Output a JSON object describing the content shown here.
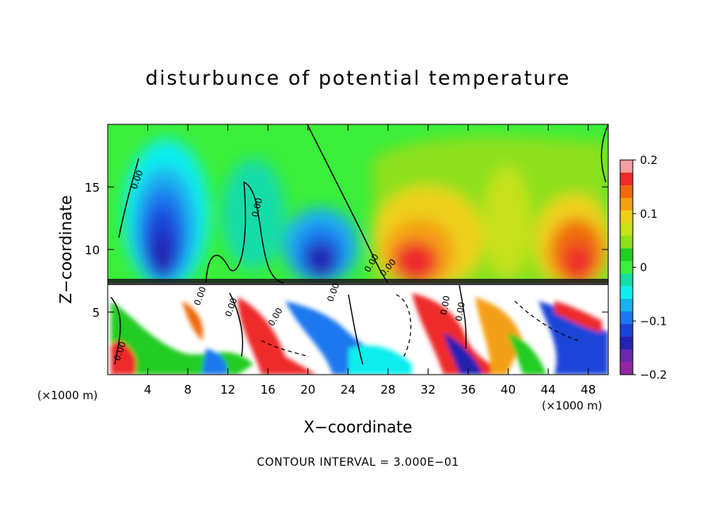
{
  "chart_data": {
    "type": "heatmap",
    "title": "disturbunce of potential temperature",
    "xlabel": "X−coordinate",
    "ylabel": "Z−coordinate",
    "x_unit_left": "(×1000 m)",
    "x_unit_right": "(×1000 m)",
    "xlim": [
      0,
      50
    ],
    "ylim": [
      0,
      20
    ],
    "x_ticks": [
      4,
      8,
      12,
      16,
      20,
      24,
      28,
      32,
      36,
      40,
      44,
      48
    ],
    "y_ticks": [
      5,
      10,
      15
    ],
    "colorbar": {
      "range": [
        -0.2,
        0.2
      ],
      "tick_values": [
        0.2,
        0.1,
        0,
        -0.1,
        -0.2
      ],
      "tick_labels": [
        "0.2",
        "0.1",
        "0",
        "−0.1",
        "−0.2"
      ],
      "colors": [
        "#f4a0a0",
        "#ee2a2a",
        "#f06a10",
        "#f4a012",
        "#eed01a",
        "#c6e01a",
        "#8ee01a",
        "#22cc22",
        "#3aee3a",
        "#18dca8",
        "#10eeee",
        "#1ab0ee",
        "#1a78ee",
        "#1a44d8",
        "#2424b0",
        "#6a28b0",
        "#9424a6"
      ]
    },
    "contour_interval": "CONTOUR INTERVAL = 3.000E−01",
    "contour_labels": [
      "0.00",
      "0.00",
      "0.00",
      "0.00",
      "0.00",
      "0.00",
      "0.00",
      "0.00",
      "0.00",
      "0.00",
      "0.00"
    ],
    "features": [
      {
        "kind": "field",
        "x": 4.5,
        "z": 12.0,
        "value": -0.18
      },
      {
        "kind": "field",
        "x": 5.0,
        "z": 16.0,
        "value": -0.08
      },
      {
        "kind": "field",
        "x": 21.5,
        "z": 9.0,
        "value": -0.17
      },
      {
        "kind": "field",
        "x": 15.0,
        "z": 14.0,
        "value": -0.02
      },
      {
        "kind": "field",
        "x": 30.5,
        "z": 9.5,
        "value": 0.14
      },
      {
        "kind": "field",
        "x": 34.0,
        "z": 11.0,
        "value": 0.08
      },
      {
        "kind": "field",
        "x": 46.5,
        "z": 9.5,
        "value": 0.14
      },
      {
        "kind": "field",
        "x": 38.0,
        "z": 15.0,
        "value": 0.04
      }
    ]
  }
}
